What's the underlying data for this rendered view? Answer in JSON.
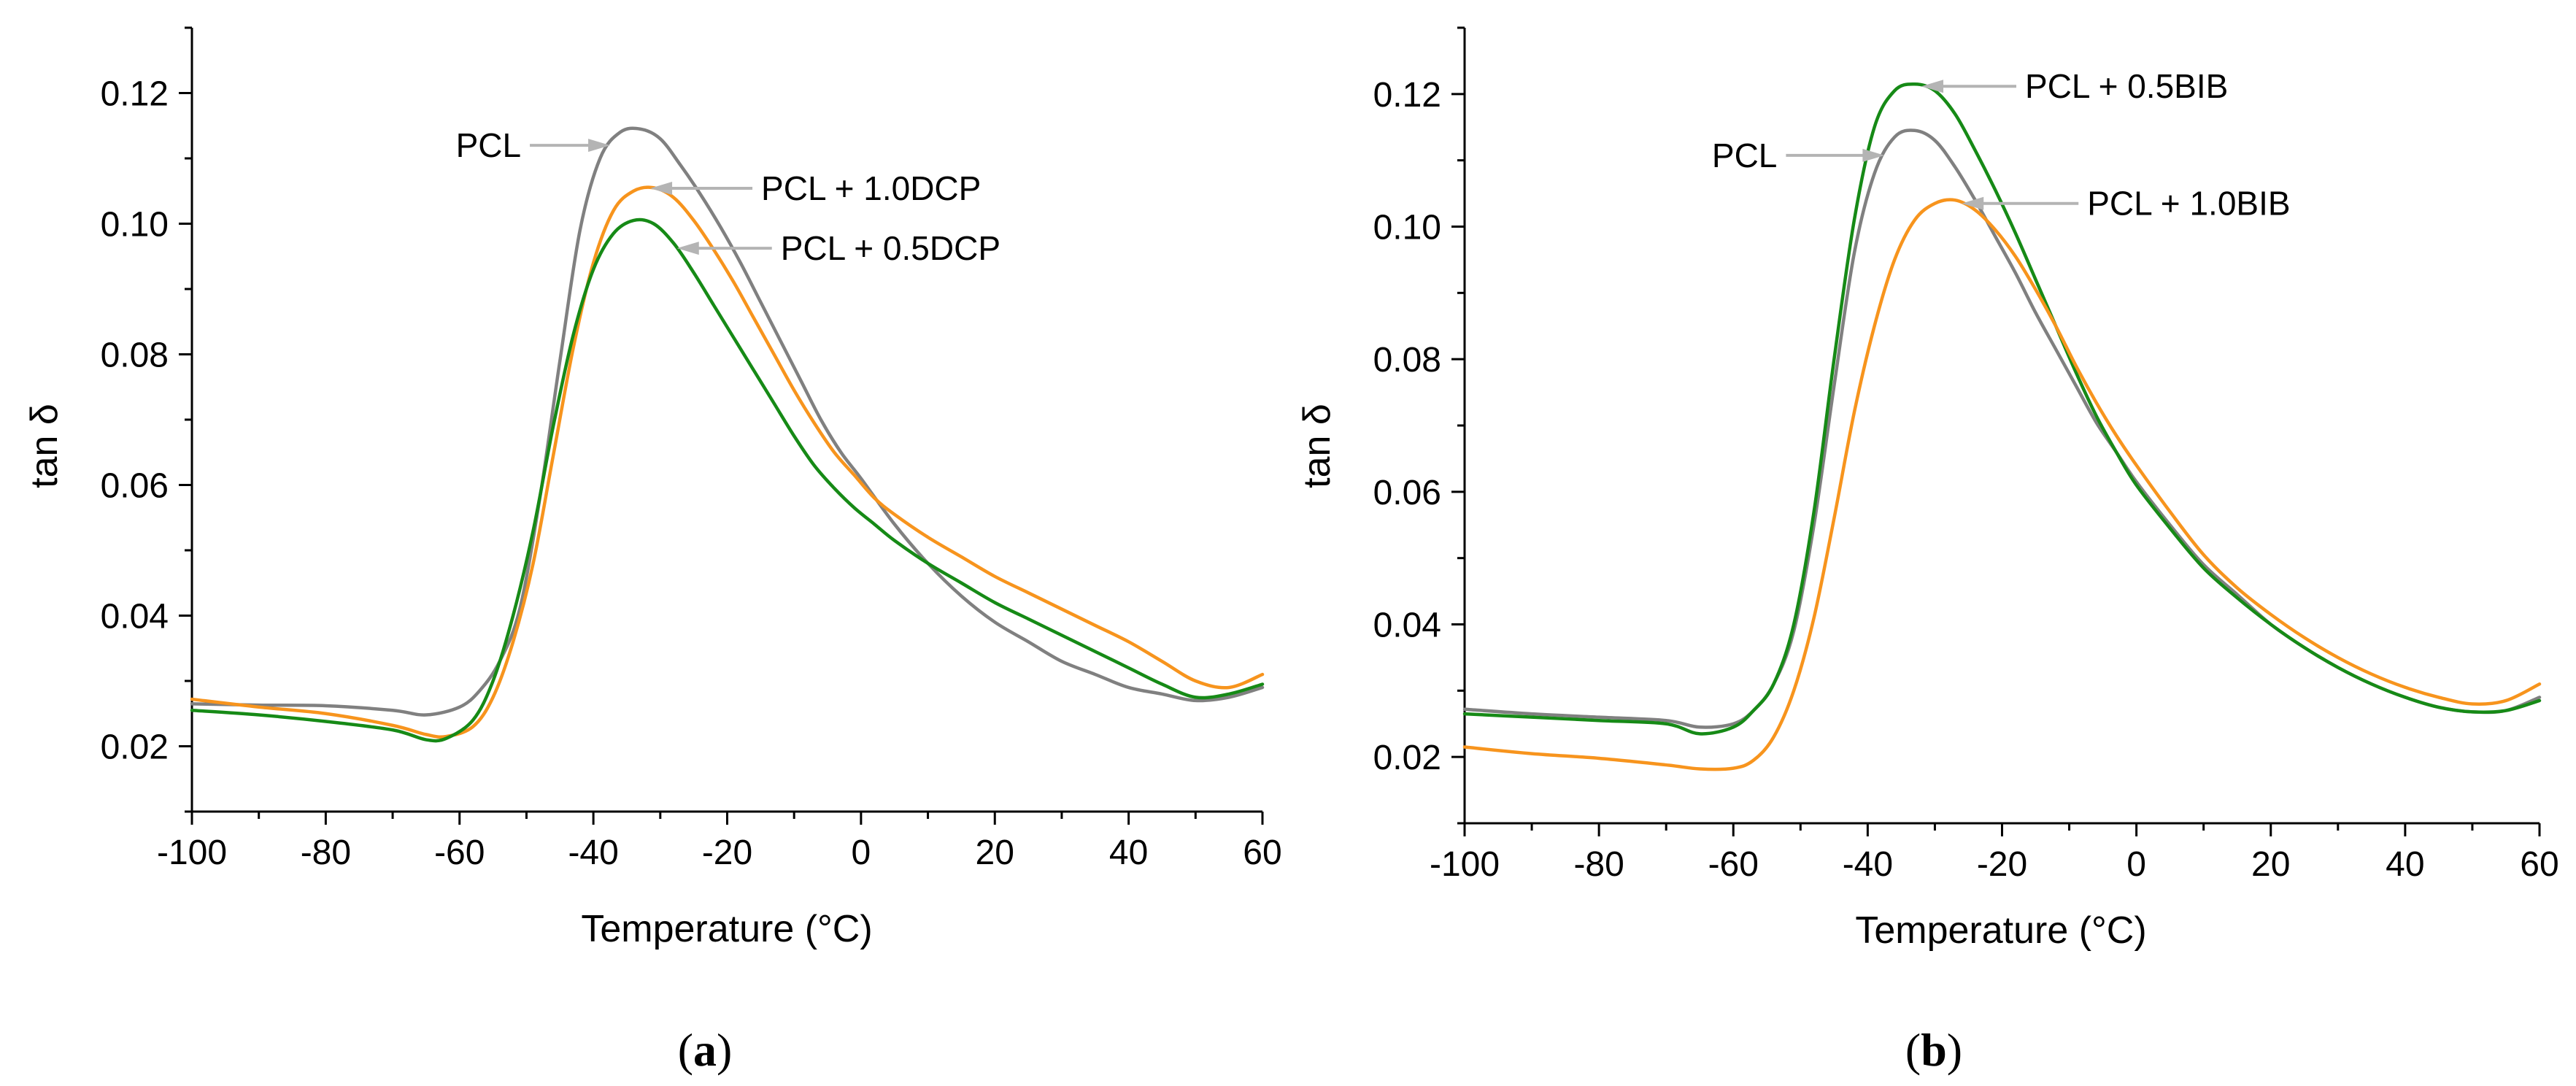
{
  "colors": {
    "PCL": "#808080",
    "orange": "#f7941d",
    "green": "#168a16",
    "arrow": "#b4b4b4",
    "axis": "#000000"
  },
  "chart_data": [
    {
      "id": "a",
      "type": "line",
      "panel_label": "a",
      "panel_label_open": "(",
      "panel_label_close": ")",
      "xlabel": "Temperature (°C)",
      "ylabel": "tan δ",
      "xlim": [
        -100,
        60
      ],
      "ylim": [
        0.01,
        0.13
      ],
      "xticks": [
        -100,
        -80,
        -60,
        -40,
        -20,
        0,
        20,
        40,
        60
      ],
      "xtick_labels": [
        "-100",
        "-80",
        "-60",
        "-40",
        "-20",
        "0",
        "20",
        "40",
        "60"
      ],
      "yticks": [
        0.02,
        0.04,
        0.06,
        0.08,
        0.1,
        0.12
      ],
      "ytick_labels": [
        "0.02",
        "0.04",
        "0.06",
        "0.08",
        "0.10",
        "0.12"
      ],
      "x_minor_step": 10,
      "y_minor_step": 0.01,
      "series": [
        {
          "name": "PCL",
          "color": "#808080",
          "x": [
            -100,
            -90,
            -80,
            -70,
            -65,
            -60,
            -57,
            -54,
            -51,
            -48,
            -45,
            -42,
            -39,
            -36,
            -33,
            -30,
            -27,
            -24,
            -21,
            -18,
            -15,
            -12,
            -9,
            -6,
            -3,
            0,
            5,
            10,
            15,
            20,
            25,
            30,
            35,
            40,
            45,
            50,
            55,
            60
          ],
          "y": [
            0.0265,
            0.0263,
            0.0262,
            0.0255,
            0.0248,
            0.026,
            0.0285,
            0.033,
            0.041,
            0.058,
            0.079,
            0.099,
            0.11,
            0.114,
            0.1145,
            0.113,
            0.109,
            0.1045,
            0.0995,
            0.094,
            0.088,
            0.082,
            0.076,
            0.07,
            0.065,
            0.061,
            0.054,
            0.048,
            0.043,
            0.039,
            0.036,
            0.033,
            0.031,
            0.029,
            0.028,
            0.027,
            0.0275,
            0.029
          ]
        },
        {
          "name": "PCL + 1.0DCP",
          "color": "#f7941d",
          "x": [
            -100,
            -90,
            -80,
            -70,
            -65,
            -62,
            -58,
            -55,
            -52,
            -49,
            -46,
            -43,
            -40,
            -37,
            -34,
            -31,
            -28,
            -25,
            -22,
            -19,
            -16,
            -13,
            -10,
            -7,
            -4,
            -1,
            2,
            5,
            10,
            15,
            20,
            25,
            30,
            35,
            40,
            45,
            50,
            55,
            60
          ],
          "y": [
            0.0272,
            0.026,
            0.025,
            0.0232,
            0.0218,
            0.0215,
            0.023,
            0.0275,
            0.036,
            0.048,
            0.0645,
            0.081,
            0.094,
            0.102,
            0.105,
            0.1055,
            0.104,
            0.1005,
            0.096,
            0.091,
            0.0855,
            0.08,
            0.0745,
            0.0695,
            0.065,
            0.0615,
            0.058,
            0.0555,
            0.052,
            0.049,
            0.046,
            0.0435,
            0.041,
            0.0385,
            0.036,
            0.033,
            0.03,
            0.029,
            0.031
          ]
        },
        {
          "name": "PCL + 0.5DCP",
          "color": "#168a16",
          "x": [
            -100,
            -90,
            -80,
            -70,
            -65,
            -62,
            -58,
            -55,
            -52,
            -49,
            -46,
            -43,
            -40,
            -37,
            -34,
            -31,
            -28,
            -25,
            -22,
            -19,
            -16,
            -13,
            -10,
            -7,
            -4,
            -1,
            2,
            5,
            10,
            15,
            20,
            25,
            30,
            35,
            40,
            45,
            50,
            55,
            60
          ],
          "y": [
            0.0255,
            0.0248,
            0.0238,
            0.0225,
            0.021,
            0.0212,
            0.024,
            0.03,
            0.04,
            0.053,
            0.069,
            0.083,
            0.093,
            0.0985,
            0.1005,
            0.1,
            0.097,
            0.0925,
            0.0875,
            0.0825,
            0.0775,
            0.0725,
            0.0675,
            0.063,
            0.0595,
            0.0565,
            0.054,
            0.0515,
            0.048,
            0.045,
            0.042,
            0.0395,
            0.037,
            0.0345,
            0.032,
            0.0295,
            0.0275,
            0.028,
            0.0295
          ]
        }
      ],
      "annotations": [
        {
          "text": "PCL",
          "series": "PCL"
        },
        {
          "text": "PCL + 1.0DCP",
          "series": "PCL + 1.0DCP"
        },
        {
          "text": "PCL + 0.5DCP",
          "series": "PCL + 0.5DCP"
        }
      ]
    },
    {
      "id": "b",
      "type": "line",
      "panel_label": "b",
      "panel_label_open": "(",
      "panel_label_close": ")",
      "xlabel": "Temperature (°C)",
      "ylabel": "tan δ",
      "xlim": [
        -100,
        60
      ],
      "ylim": [
        0.01,
        0.13
      ],
      "xticks": [
        -100,
        -80,
        -60,
        -40,
        -20,
        0,
        20,
        40,
        60
      ],
      "xtick_labels": [
        "-100",
        "-80",
        "-60",
        "-40",
        "-20",
        "0",
        "20",
        "40",
        "60"
      ],
      "yticks": [
        0.02,
        0.04,
        0.06,
        0.08,
        0.1,
        0.12
      ],
      "ytick_labels": [
        "0.02",
        "0.04",
        "0.06",
        "0.08",
        "0.10",
        "0.12"
      ],
      "x_minor_step": 10,
      "y_minor_step": 0.01,
      "series": [
        {
          "name": "PCL",
          "color": "#808080",
          "x": [
            -100,
            -90,
            -80,
            -70,
            -65,
            -60,
            -57,
            -54,
            -51,
            -48,
            -45,
            -42,
            -39,
            -36,
            -33,
            -30,
            -27,
            -24,
            -21,
            -18,
            -15,
            -12,
            -9,
            -6,
            -3,
            0,
            5,
            10,
            15,
            20,
            25,
            30,
            35,
            40,
            45,
            50,
            55,
            60
          ],
          "y": [
            0.0272,
            0.0265,
            0.026,
            0.0255,
            0.0245,
            0.025,
            0.027,
            0.031,
            0.039,
            0.055,
            0.076,
            0.096,
            0.108,
            0.1135,
            0.1145,
            0.113,
            0.109,
            0.104,
            0.0985,
            0.093,
            0.087,
            0.0815,
            0.076,
            0.0705,
            0.066,
            0.0615,
            0.055,
            0.049,
            0.0445,
            0.04,
            0.0365,
            0.0335,
            0.031,
            0.029,
            0.0275,
            0.0268,
            0.027,
            0.029
          ]
        },
        {
          "name": "PCL + 0.5BIB",
          "color": "#168a16",
          "x": [
            -100,
            -90,
            -80,
            -70,
            -65,
            -60,
            -57,
            -54,
            -51,
            -48,
            -45,
            -42,
            -39,
            -36,
            -33,
            -30,
            -27,
            -24,
            -21,
            -18,
            -15,
            -12,
            -9,
            -6,
            -3,
            0,
            5,
            10,
            15,
            20,
            25,
            30,
            35,
            40,
            45,
            50,
            55,
            60
          ],
          "y": [
            0.0265,
            0.026,
            0.0255,
            0.025,
            0.0235,
            0.0245,
            0.027,
            0.031,
            0.04,
            0.057,
            0.08,
            0.101,
            0.115,
            0.1205,
            0.1215,
            0.1205,
            0.117,
            0.1115,
            0.1055,
            0.099,
            0.092,
            0.085,
            0.078,
            0.0715,
            0.066,
            0.061,
            0.0545,
            0.0485,
            0.044,
            0.04,
            0.0365,
            0.0335,
            0.031,
            0.029,
            0.0275,
            0.0268,
            0.027,
            0.0285
          ]
        },
        {
          "name": "PCL + 1.0BIB",
          "color": "#f7941d",
          "x": [
            -100,
            -90,
            -80,
            -70,
            -65,
            -60,
            -57,
            -54,
            -51,
            -48,
            -45,
            -42,
            -39,
            -36,
            -33,
            -30,
            -27,
            -24,
            -21,
            -18,
            -15,
            -12,
            -9,
            -6,
            -3,
            0,
            5,
            10,
            15,
            20,
            25,
            30,
            35,
            40,
            45,
            50,
            55,
            60
          ],
          "y": [
            0.0215,
            0.0205,
            0.0198,
            0.0188,
            0.0182,
            0.0183,
            0.0195,
            0.023,
            0.03,
            0.041,
            0.056,
            0.072,
            0.085,
            0.095,
            0.101,
            0.1035,
            0.104,
            0.1025,
            0.0995,
            0.0955,
            0.0905,
            0.085,
            0.079,
            0.0735,
            0.0685,
            0.064,
            0.057,
            0.0505,
            0.0455,
            0.0415,
            0.038,
            0.035,
            0.0325,
            0.0305,
            0.029,
            0.028,
            0.0285,
            0.031
          ]
        }
      ],
      "annotations": [
        {
          "text": "PCL + 0.5BIB",
          "series": "PCL + 0.5BIB"
        },
        {
          "text": "PCL",
          "series": "PCL"
        },
        {
          "text": "PCL + 1.0BIB",
          "series": "PCL + 1.0BIB"
        }
      ]
    }
  ]
}
